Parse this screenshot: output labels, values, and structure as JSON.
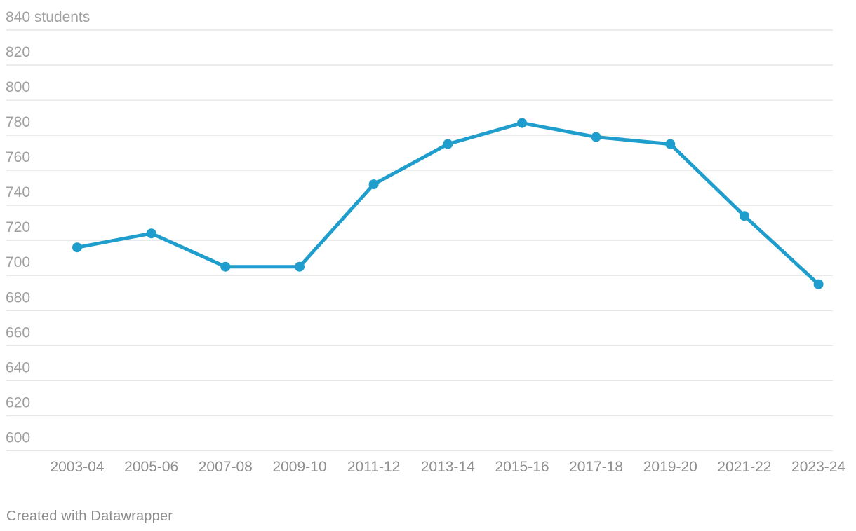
{
  "chart_data": {
    "type": "line",
    "title": "",
    "unit_label": "students",
    "categories": [
      "2003-04",
      "2005-06",
      "2007-08",
      "2009-10",
      "2011-12",
      "2013-14",
      "2015-16",
      "2017-18",
      "2019-20",
      "2021-22",
      "2023-24"
    ],
    "series": [
      {
        "name": "students",
        "values": [
          716,
          724,
          705,
          705,
          752,
          775,
          787,
          779,
          775,
          734,
          695
        ]
      }
    ],
    "ylim": [
      600,
      840
    ],
    "ytick_step": 20,
    "ytick_labels": [
      "600",
      "620",
      "640",
      "660",
      "680",
      "700",
      "720",
      "740",
      "760",
      "780",
      "800",
      "820",
      "840 students"
    ],
    "grid": true,
    "legend": "none",
    "colors": {
      "line": "#1f9ecd",
      "point": "#1f9ecd",
      "grid": "#e6e6e6",
      "y_tick_label": "#a0a0a0",
      "x_tick_label": "#8f8f8f"
    }
  },
  "footer": {
    "credit": "Created with Datawrapper"
  }
}
